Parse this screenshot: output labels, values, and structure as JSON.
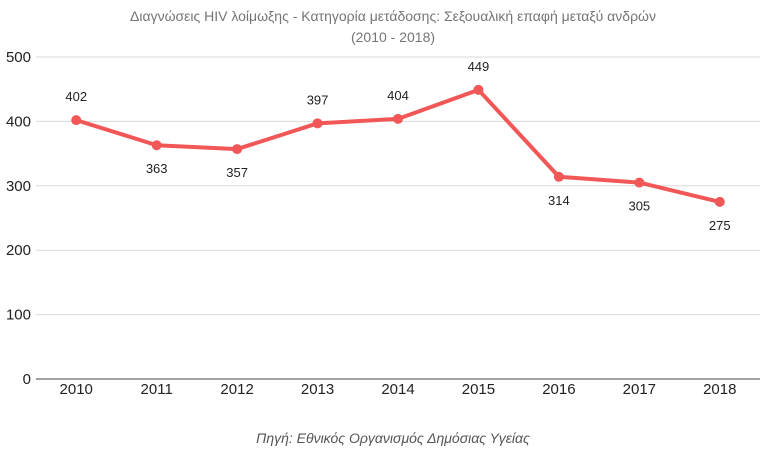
{
  "chart_data": {
    "type": "line",
    "title": "Διαγνώσεις HIV λοίμωξης - Κατηγορία μετάδοσης: Σεξουαλική επαφή μεταξύ ανδρών",
    "subtitle": "(2010 - 2018)",
    "categories": [
      "2010",
      "2011",
      "2012",
      "2013",
      "2014",
      "2015",
      "2016",
      "2017",
      "2018"
    ],
    "series": [
      {
        "values": [
          402,
          363,
          357,
          397,
          404,
          449,
          314,
          305,
          275
        ]
      }
    ],
    "data_labels": [
      "402",
      "363",
      "357",
      "397",
      "404",
      "449",
      "314",
      "305",
      "275"
    ],
    "y_ticks": [
      "0",
      "100",
      "200",
      "300",
      "400",
      "500"
    ],
    "ylim": [
      0,
      500
    ],
    "xlabel": "",
    "ylabel": "",
    "grid": true,
    "legend": "none",
    "source": "Πηγή: Εθνικός Οργανισμός Δημόσιας Υγείας",
    "colors": {
      "line": "#f25757",
      "grid": "#d9d9d9",
      "axis": "#444444"
    }
  }
}
